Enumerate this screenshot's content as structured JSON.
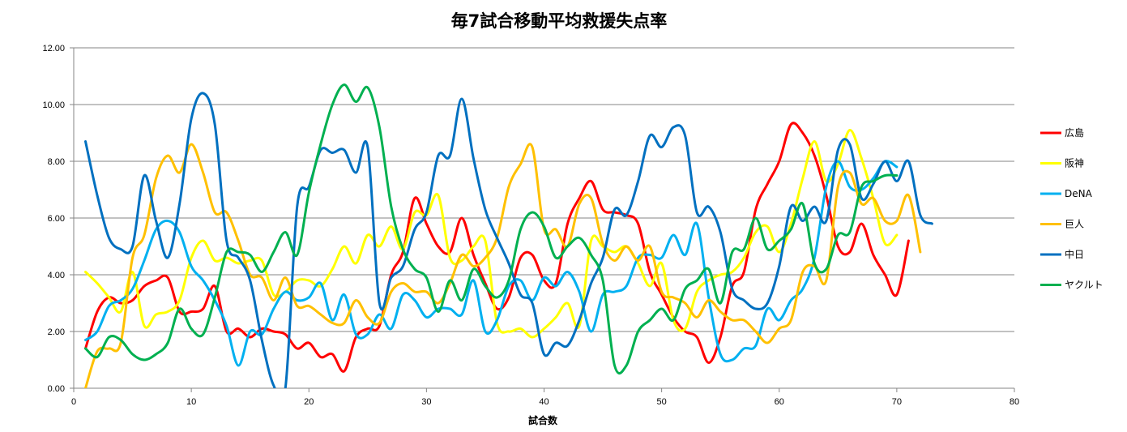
{
  "chart_data": {
    "type": "line",
    "title": "毎7試合移動平均救援失点率",
    "xlabel": "試合数",
    "ylabel": "",
    "xlim": [
      0,
      80
    ],
    "ylim": [
      0,
      12
    ],
    "xticks": [
      "0",
      "10",
      "20",
      "30",
      "40",
      "50",
      "60",
      "70",
      "80"
    ],
    "yticks": [
      "0.00",
      "2.00",
      "4.00",
      "6.00",
      "8.00",
      "10.00",
      "12.00"
    ],
    "grid": "horizontal",
    "legend_position": "right",
    "series": [
      {
        "name": "広島",
        "color": "#ff0000",
        "x": [
          1,
          2,
          3,
          4,
          5,
          6,
          7,
          8,
          9,
          10,
          11,
          12,
          13,
          14,
          15,
          16,
          17,
          18,
          19,
          20,
          21,
          22,
          23,
          24,
          25,
          26,
          27,
          28,
          29,
          30,
          31,
          32,
          33,
          34,
          35,
          36,
          37,
          38,
          39,
          40,
          41,
          42,
          43,
          44,
          45,
          46,
          47,
          48,
          49,
          50,
          51,
          52,
          53,
          54,
          55,
          56,
          57,
          58,
          59,
          60,
          61,
          62,
          63,
          64,
          65,
          66,
          67,
          68,
          69,
          70,
          71
        ],
        "values": [
          1.4,
          2.7,
          3.2,
          3.0,
          3.1,
          3.6,
          3.8,
          3.9,
          2.7,
          2.7,
          2.8,
          3.6,
          2.0,
          2.1,
          1.8,
          2.1,
          2.0,
          1.9,
          1.4,
          1.6,
          1.1,
          1.2,
          0.6,
          1.8,
          2.1,
          2.2,
          4.0,
          4.8,
          6.7,
          5.8,
          5.0,
          4.8,
          6.0,
          4.7,
          3.7,
          2.8,
          3.2,
          4.6,
          4.7,
          3.8,
          3.7,
          5.8,
          6.7,
          7.3,
          6.3,
          6.2,
          6.1,
          5.8,
          4.1,
          3.3,
          2.5,
          2.0,
          1.8,
          0.9,
          1.8,
          3.6,
          4.1,
          6.3,
          7.2,
          8.0,
          9.3,
          9.0,
          8.2,
          6.8,
          5.0,
          4.8,
          5.8,
          4.7,
          4.0,
          3.3,
          5.2
        ]
      },
      {
        "name": "阪神",
        "color": "#ffff00",
        "x": [
          1,
          2,
          3,
          4,
          5,
          6,
          7,
          8,
          9,
          10,
          11,
          12,
          13,
          14,
          15,
          16,
          17,
          18,
          19,
          20,
          21,
          22,
          23,
          24,
          25,
          26,
          27,
          28,
          29,
          30,
          31,
          32,
          33,
          34,
          35,
          36,
          37,
          38,
          39,
          40,
          41,
          42,
          43,
          44,
          45,
          46,
          47,
          48,
          49,
          50,
          51,
          52,
          53,
          54,
          55,
          56,
          57,
          58,
          59,
          60,
          61,
          62,
          63,
          64,
          65,
          66,
          67,
          68,
          69,
          70
        ],
        "values": [
          4.1,
          3.7,
          3.2,
          2.7,
          4.1,
          2.2,
          2.6,
          2.7,
          3.1,
          4.6,
          5.2,
          4.5,
          4.6,
          4.4,
          4.5,
          4.5,
          3.3,
          3.4,
          3.8,
          3.8,
          3.6,
          4.2,
          5.0,
          4.4,
          5.4,
          5.0,
          5.7,
          4.9,
          6.2,
          6.1,
          6.8,
          4.6,
          4.5,
          5.0,
          5.2,
          2.3,
          2.0,
          2.1,
          1.8,
          2.1,
          2.5,
          3.0,
          2.2,
          5.2,
          5.0,
          4.8,
          5.0,
          4.4,
          3.6,
          4.4,
          2.4,
          2.1,
          3.4,
          3.8,
          4.0,
          4.1,
          4.6,
          5.5,
          5.7,
          4.8,
          5.8,
          7.4,
          8.7,
          7.3,
          7.9,
          9.1,
          8.1,
          6.7,
          5.1,
          5.4
        ]
      },
      {
        "name": "DeNA",
        "color": "#00b0f0",
        "x": [
          1,
          2,
          3,
          4,
          5,
          6,
          7,
          8,
          9,
          10,
          11,
          12,
          13,
          14,
          15,
          16,
          17,
          18,
          19,
          20,
          21,
          22,
          23,
          24,
          25,
          26,
          27,
          28,
          29,
          30,
          31,
          32,
          33,
          34,
          35,
          36,
          37,
          38,
          39,
          40,
          41,
          42,
          43,
          44,
          45,
          46,
          47,
          48,
          49,
          50,
          51,
          52,
          53,
          54,
          55,
          56,
          57,
          58,
          59,
          60,
          61,
          62,
          63,
          64,
          65,
          66,
          67,
          68,
          69,
          70
        ],
        "values": [
          1.7,
          2.0,
          2.9,
          3.1,
          3.5,
          4.5,
          5.6,
          5.9,
          5.5,
          4.3,
          3.8,
          3.1,
          2.2,
          0.8,
          2.0,
          1.9,
          2.8,
          3.4,
          3.1,
          3.2,
          3.7,
          2.4,
          3.3,
          1.9,
          1.9,
          2.6,
          2.1,
          3.3,
          3.1,
          2.5,
          2.8,
          2.8,
          2.6,
          3.8,
          2.0,
          2.4,
          3.6,
          3.8,
          3.1,
          3.9,
          3.6,
          4.1,
          3.4,
          2.0,
          3.3,
          3.4,
          3.6,
          4.6,
          4.7,
          4.6,
          5.4,
          4.7,
          5.8,
          3.2,
          1.2,
          1.0,
          1.4,
          1.5,
          2.8,
          2.4,
          3.1,
          3.5,
          4.6,
          7.1,
          8.0,
          7.1,
          7.0,
          7.4,
          8.0,
          7.8
        ]
      },
      {
        "name": "巨人",
        "color": "#ffc000",
        "x": [
          1,
          2,
          3,
          4,
          5,
          6,
          7,
          8,
          9,
          10,
          11,
          12,
          13,
          14,
          15,
          16,
          17,
          18,
          19,
          20,
          21,
          22,
          23,
          24,
          25,
          26,
          27,
          28,
          29,
          30,
          31,
          32,
          33,
          34,
          35,
          36,
          37,
          38,
          39,
          40,
          41,
          42,
          43,
          44,
          45,
          46,
          47,
          48,
          49,
          50,
          51,
          52,
          53,
          54,
          55,
          56,
          57,
          58,
          59,
          60,
          61,
          62,
          63,
          64,
          65,
          66,
          67,
          68,
          69,
          70,
          71,
          72
        ],
        "values": [
          0.0,
          1.3,
          1.4,
          1.6,
          4.6,
          5.4,
          7.4,
          8.2,
          7.6,
          8.6,
          7.6,
          6.2,
          6.2,
          5.2,
          4.0,
          3.9,
          3.1,
          3.9,
          2.9,
          2.9,
          2.6,
          2.3,
          2.3,
          3.1,
          2.5,
          2.3,
          3.4,
          3.7,
          3.4,
          3.4,
          3.0,
          3.7,
          4.7,
          4.3,
          4.6,
          5.3,
          7.1,
          7.9,
          8.5,
          5.6,
          5.6,
          5.0,
          6.5,
          6.7,
          5.1,
          4.5,
          5.0,
          4.5,
          5.0,
          3.4,
          3.2,
          3.0,
          2.5,
          3.1,
          2.7,
          2.4,
          2.4,
          2.0,
          1.6,
          2.1,
          2.4,
          4.1,
          4.3,
          3.8,
          7.1,
          7.6,
          6.5,
          6.7,
          5.9,
          5.9,
          6.8,
          4.8
        ]
      },
      {
        "name": "中日",
        "color": "#0070c0",
        "x": [
          1,
          2,
          3,
          4,
          5,
          6,
          7,
          8,
          9,
          10,
          11,
          12,
          13,
          14,
          15,
          16,
          17,
          18,
          19,
          20,
          21,
          22,
          23,
          24,
          25,
          26,
          27,
          28,
          29,
          30,
          31,
          32,
          33,
          34,
          35,
          36,
          37,
          38,
          39,
          40,
          41,
          42,
          43,
          44,
          45,
          46,
          47,
          48,
          49,
          50,
          51,
          52,
          53,
          54,
          55,
          56,
          57,
          58,
          59,
          60,
          61,
          62,
          63,
          64,
          65,
          66,
          67,
          68,
          69,
          70,
          71,
          72,
          73
        ],
        "values": [
          8.7,
          6.8,
          5.3,
          4.9,
          5.0,
          7.5,
          5.9,
          4.6,
          6.5,
          9.5,
          10.4,
          9.3,
          5.2,
          4.6,
          3.8,
          1.7,
          0.1,
          0.0,
          6.4,
          7.1,
          8.4,
          8.3,
          8.4,
          7.6,
          8.5,
          3.0,
          3.9,
          4.3,
          5.6,
          6.2,
          8.2,
          8.2,
          10.2,
          8.1,
          6.3,
          5.3,
          4.4,
          3.3,
          3.0,
          1.2,
          1.6,
          1.5,
          2.4,
          3.7,
          4.6,
          6.3,
          6.1,
          7.3,
          8.9,
          8.5,
          9.2,
          8.9,
          6.2,
          6.4,
          5.5,
          3.5,
          3.1,
          2.8,
          3.0,
          4.3,
          6.4,
          5.9,
          6.4,
          5.9,
          8.4,
          8.6,
          6.7,
          7.2,
          8.0,
          7.3,
          8.0,
          6.1,
          5.8
        ]
      },
      {
        "name": "ヤクルト",
        "color": "#00b050",
        "x": [
          1,
          2,
          3,
          4,
          5,
          6,
          7,
          8,
          9,
          10,
          11,
          12,
          13,
          14,
          15,
          16,
          17,
          18,
          19,
          20,
          21,
          22,
          23,
          24,
          25,
          26,
          27,
          28,
          29,
          30,
          31,
          32,
          33,
          34,
          35,
          36,
          37,
          38,
          39,
          40,
          41,
          42,
          43,
          44,
          45,
          46,
          47,
          48,
          49,
          50,
          51,
          52,
          53,
          54,
          55,
          56,
          57,
          58,
          59,
          60,
          61,
          62,
          63,
          64,
          65,
          66,
          67,
          68,
          69,
          70
        ],
        "values": [
          1.4,
          1.1,
          1.8,
          1.7,
          1.2,
          1.0,
          1.2,
          1.6,
          2.8,
          2.1,
          1.9,
          3.2,
          4.8,
          4.8,
          4.7,
          4.1,
          4.8,
          5.5,
          4.7,
          6.9,
          8.6,
          10.0,
          10.7,
          10.1,
          10.6,
          9.2,
          6.4,
          4.9,
          4.2,
          3.9,
          2.7,
          3.8,
          3.1,
          4.2,
          3.6,
          3.2,
          3.8,
          5.6,
          6.2,
          5.7,
          4.6,
          5.0,
          5.3,
          4.7,
          3.8,
          0.8,
          0.8,
          2.0,
          2.4,
          2.8,
          2.4,
          3.5,
          3.8,
          4.2,
          3.0,
          4.8,
          4.9,
          6.0,
          4.9,
          5.2,
          5.6,
          6.5,
          4.4,
          4.2,
          5.4,
          5.5,
          7.1,
          7.3,
          7.5,
          7.5
        ]
      }
    ]
  }
}
